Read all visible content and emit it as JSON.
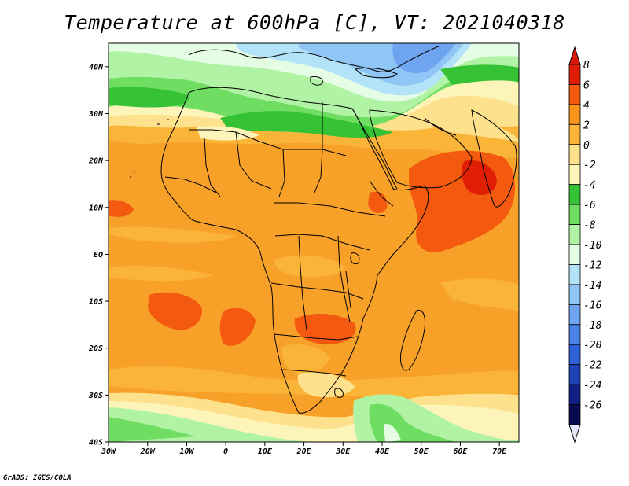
{
  "title": "Temperature at 600hPa [C], VT: 2021040318",
  "credit": "GrADS: IGES/COLA",
  "map": {
    "lon_range": [
      -30,
      75
    ],
    "lat_range": [
      -40,
      45
    ],
    "lat_ticks": [
      {
        "lat": 40,
        "label": "40N"
      },
      {
        "lat": 30,
        "label": "30N"
      },
      {
        "lat": 20,
        "label": "20N"
      },
      {
        "lat": 10,
        "label": "10N"
      },
      {
        "lat": 0,
        "label": "EQ"
      },
      {
        "lat": -10,
        "label": "10S"
      },
      {
        "lat": -20,
        "label": "20S"
      },
      {
        "lat": -30,
        "label": "30S"
      },
      {
        "lat": -40,
        "label": "40S"
      }
    ],
    "lon_ticks": [
      {
        "lon": -30,
        "label": "30W"
      },
      {
        "lon": -20,
        "label": "20W"
      },
      {
        "lon": -10,
        "label": "10W"
      },
      {
        "lon": 0,
        "label": "0"
      },
      {
        "lon": 10,
        "label": "10E"
      },
      {
        "lon": 20,
        "label": "20E"
      },
      {
        "lon": 30,
        "label": "30E"
      },
      {
        "lon": 40,
        "label": "40E"
      },
      {
        "lon": 50,
        "label": "50E"
      },
      {
        "lon": 60,
        "label": "60E"
      },
      {
        "lon": 70,
        "label": "70E"
      }
    ]
  },
  "colorbar": {
    "levels": [
      "8",
      "6",
      "4",
      "2",
      "0",
      "-2",
      "-4",
      "-6",
      "-8",
      "-10",
      "-12",
      "-14",
      "-16",
      "-18",
      "-20",
      "-22",
      "-24",
      "-26"
    ],
    "colors": [
      "#e01e06",
      "#f35a0f",
      "#f8961b",
      "#fab437",
      "#fde18c",
      "#fdf4b9",
      "#36c235",
      "#6fdc62",
      "#b1f3a4",
      "#e4fde4",
      "#b3e3f8",
      "#8fc6f5",
      "#6ea4f0",
      "#4a82e6",
      "#2f62d9",
      "#1f42b9",
      "#111f86",
      "#0a0a52"
    ],
    "top_color": "#d7190a",
    "bottom_color": "#e6e6fc"
  }
}
